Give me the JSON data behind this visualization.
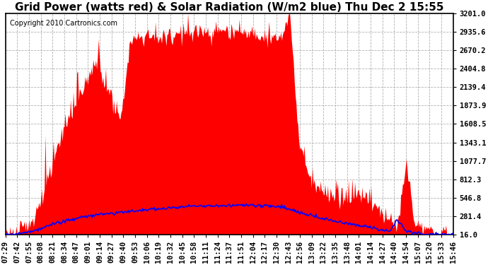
{
  "title": "Grid Power (watts red) & Solar Radiation (W/m2 blue) Thu Dec 2 15:55",
  "copyright_text": "Copyright 2010 Cartronics.com",
  "background_color": "#ffffff",
  "plot_bg_color": "#ffffff",
  "grid_color": "#b0b0b0",
  "red_color": "#ff0000",
  "blue_color": "#0000ff",
  "y_min": 16.0,
  "y_max": 3201.0,
  "yticks": [
    16.0,
    281.4,
    546.8,
    812.3,
    1077.7,
    1343.1,
    1608.5,
    1873.9,
    2139.4,
    2404.8,
    2670.2,
    2935.6,
    3201.0
  ],
  "x_labels": [
    "07:29",
    "07:42",
    "07:55",
    "08:08",
    "08:21",
    "08:34",
    "08:47",
    "09:01",
    "09:14",
    "09:27",
    "09:40",
    "09:53",
    "10:06",
    "10:19",
    "10:32",
    "10:45",
    "10:58",
    "11:11",
    "11:24",
    "11:37",
    "11:51",
    "12:04",
    "12:17",
    "12:30",
    "12:43",
    "12:56",
    "13:09",
    "13:22",
    "13:35",
    "13:48",
    "14:01",
    "14:14",
    "14:27",
    "14:40",
    "14:54",
    "15:07",
    "15:20",
    "15:33",
    "15:46"
  ],
  "title_fontsize": 11,
  "copyright_fontsize": 7,
  "tick_fontsize": 7.5
}
